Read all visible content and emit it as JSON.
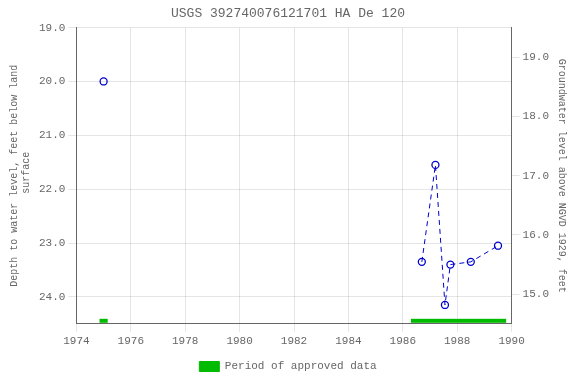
{
  "chart_data": {
    "type": "scatter",
    "title": "USGS 392740076121701 HA De 120",
    "y_label": "Depth to water level, feet below land\n surface",
    "y2_label": "Groundwater level above NGVD 1929, feet",
    "series": [
      {
        "x": [
          1975.0
        ],
        "values": [
          20.0
        ],
        "color": "#0000cc",
        "marker": "circle",
        "line_style": "none"
      },
      {
        "x": [
          1986.7,
          1987.2,
          1987.55,
          1987.75,
          1988.5,
          1989.5
        ],
        "values": [
          23.35,
          21.55,
          24.15,
          23.4,
          23.35,
          23.05
        ],
        "color": "#0000cc",
        "marker": "circle",
        "line_style": "dashed"
      }
    ],
    "approved_periods": {
      "name": "Period of approved data",
      "color": "#00bb00",
      "ranges": [
        [
          1974.85,
          1975.15
        ],
        [
          1986.3,
          1989.8
        ]
      ]
    },
    "xlim": [
      1974,
      1990
    ],
    "xticks": [
      1974,
      1976,
      1978,
      1980,
      1982,
      1984,
      1986,
      1988,
      1990
    ],
    "ylim": [
      24.5,
      19.0
    ],
    "yticks": [
      {
        "value": 19.0,
        "label": "19.0"
      },
      {
        "value": 20.0,
        "label": "20.0"
      },
      {
        "value": 21.0,
        "label": "21.0"
      },
      {
        "value": 22.0,
        "label": "22.0"
      },
      {
        "value": 23.0,
        "label": "23.0"
      },
      {
        "value": 24.0,
        "label": "24.0"
      }
    ],
    "y2lim": [
      14.5,
      19.5
    ],
    "y2ticks": [
      {
        "value": 15.0,
        "label": "15.0"
      },
      {
        "value": 16.0,
        "label": "16.0"
      },
      {
        "value": 17.0,
        "label": "17.0"
      },
      {
        "value": 18.0,
        "label": "18.0"
      },
      {
        "value": 19.0,
        "label": "19.0"
      }
    ],
    "grid": true,
    "legend": "bottom"
  }
}
